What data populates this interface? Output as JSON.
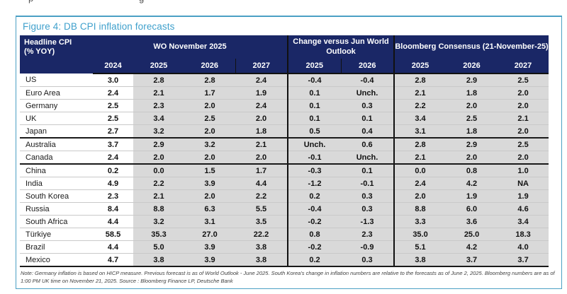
{
  "page": {
    "top_fragments": [
      "p",
      "g"
    ]
  },
  "figure": {
    "title": "Figure 4: DB CPI inflation forecasts",
    "note": "Note: Germany inflation is based on HICP measure. Previous forecast is as of World Outlook - June 2025. South Korea's change in inflation numbers are relative to the forecasts as of June 2, 2025. Bloomberg numbers are as of 1:00 PM UK time on November 21, 2025. Source : Bloomberg Finance LP, Deutsche Bank"
  },
  "colors": {
    "header_navy": "#1A2766",
    "shaded_gray": "#D9D9D9",
    "title_blue": "#3FA0CC",
    "box_border_teal": "#4BA0C4"
  },
  "chart_data": {
    "type": "table",
    "title": "Figure 4: DB CPI inflation forecasts",
    "corner": [
      "Headline CPI",
      "(% YOY)"
    ],
    "column_groups": [
      "WO November 2025",
      "Change versus Jun World Outlook",
      "Bloomberg Consensus (21-November-25)"
    ],
    "years": {
      "base": "2024",
      "wo": [
        "2025",
        "2026",
        "2027"
      ],
      "chg": [
        "2025",
        "2026"
      ],
      "bbg": [
        "2025",
        "2026",
        "2027"
      ]
    },
    "rows": [
      {
        "name": "US",
        "y2024": "3.0",
        "wo": [
          "2.8",
          "2.8",
          "2.4"
        ],
        "chg": [
          "-0.4",
          "-0.4"
        ],
        "bbg": [
          "2.8",
          "2.9",
          "2.5"
        ],
        "thick_below": false
      },
      {
        "name": "Euro Area",
        "y2024": "2.4",
        "wo": [
          "2.1",
          "1.7",
          "1.9"
        ],
        "chg": [
          "0.1",
          "Unch."
        ],
        "bbg": [
          "2.1",
          "1.8",
          "2.0"
        ],
        "thick_below": false
      },
      {
        "name": "Germany",
        "y2024": "2.5",
        "wo": [
          "2.3",
          "2.0",
          "2.4"
        ],
        "chg": [
          "0.1",
          "0.3"
        ],
        "bbg": [
          "2.2",
          "2.0",
          "2.0"
        ],
        "thick_below": false
      },
      {
        "name": "UK",
        "y2024": "2.5",
        "wo": [
          "3.4",
          "2.5",
          "2.0"
        ],
        "chg": [
          "0.1",
          "0.1"
        ],
        "bbg": [
          "3.4",
          "2.5",
          "2.1"
        ],
        "thick_below": false
      },
      {
        "name": "Japan",
        "y2024": "2.7",
        "wo": [
          "3.2",
          "2.0",
          "1.8"
        ],
        "chg": [
          "0.5",
          "0.4"
        ],
        "bbg": [
          "3.1",
          "1.8",
          "2.0"
        ],
        "thick_below": true
      },
      {
        "name": "Australia",
        "y2024": "3.7",
        "wo": [
          "2.9",
          "3.2",
          "2.1"
        ],
        "chg": [
          "Unch.",
          "0.6"
        ],
        "bbg": [
          "2.8",
          "2.9",
          "2.5"
        ],
        "thick_below": false
      },
      {
        "name": "Canada",
        "y2024": "2.4",
        "wo": [
          "2.0",
          "2.0",
          "2.0"
        ],
        "chg": [
          "-0.1",
          "Unch."
        ],
        "bbg": [
          "2.1",
          "2.0",
          "2.0"
        ],
        "thick_below": true
      },
      {
        "name": "China",
        "y2024": "0.2",
        "wo": [
          "0.0",
          "1.5",
          "1.7"
        ],
        "chg": [
          "-0.3",
          "0.1"
        ],
        "bbg": [
          "0.0",
          "0.8",
          "1.0"
        ],
        "thick_below": false
      },
      {
        "name": "India",
        "y2024": "4.9",
        "wo": [
          "2.2",
          "3.9",
          "4.4"
        ],
        "chg": [
          "-1.2",
          "-0.1"
        ],
        "bbg": [
          "2.4",
          "4.2",
          "NA"
        ],
        "thick_below": false
      },
      {
        "name": "South Korea",
        "y2024": "2.3",
        "wo": [
          "2.1",
          "2.0",
          "2.2"
        ],
        "chg": [
          "0.2",
          "0.3"
        ],
        "bbg": [
          "2.0",
          "1.9",
          "1.9"
        ],
        "thick_below": false
      },
      {
        "name": "Russia",
        "y2024": "8.4",
        "wo": [
          "8.8",
          "6.3",
          "5.5"
        ],
        "chg": [
          "-0.4",
          "0.3"
        ],
        "bbg": [
          "8.8",
          "6.0",
          "4.6"
        ],
        "thick_below": false
      },
      {
        "name": "South Africa",
        "y2024": "4.4",
        "wo": [
          "3.2",
          "3.1",
          "3.5"
        ],
        "chg": [
          "-0.2",
          "-1.3"
        ],
        "bbg": [
          "3.3",
          "3.6",
          "3.4"
        ],
        "thick_below": false
      },
      {
        "name": "Türkiye",
        "y2024": "58.5",
        "wo": [
          "35.3",
          "27.0",
          "22.2"
        ],
        "chg": [
          "0.8",
          "2.3"
        ],
        "bbg": [
          "35.0",
          "25.0",
          "18.3"
        ],
        "thick_below": false
      },
      {
        "name": "Brazil",
        "y2024": "4.4",
        "wo": [
          "5.0",
          "3.9",
          "3.8"
        ],
        "chg": [
          "-0.2",
          "-0.9"
        ],
        "bbg": [
          "5.1",
          "4.2",
          "4.0"
        ],
        "thick_below": false
      },
      {
        "name": "Mexico",
        "y2024": "4.7",
        "wo": [
          "3.8",
          "3.9",
          "3.8"
        ],
        "chg": [
          "0.2",
          "0.3"
        ],
        "bbg": [
          "3.8",
          "3.7",
          "3.7"
        ],
        "thick_below": true
      }
    ]
  }
}
